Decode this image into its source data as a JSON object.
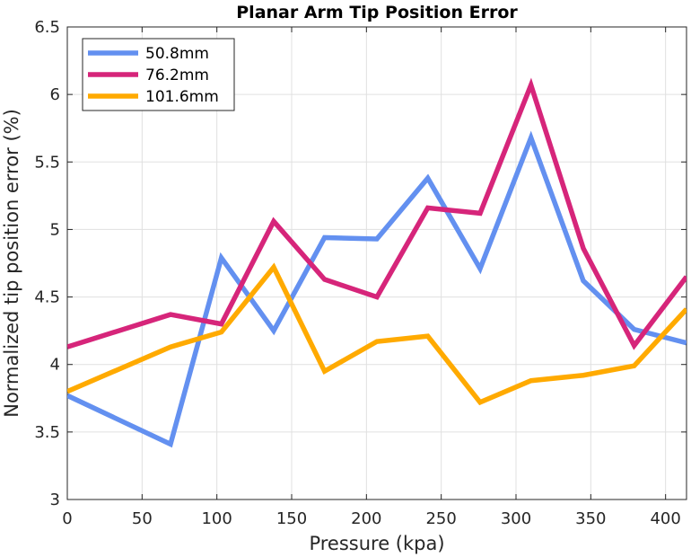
{
  "chart_data": {
    "type": "line",
    "title": "Planar Arm Tip Position Error",
    "xlabel": "Pressure (kpa)",
    "ylabel": "Normalized tip position error (%)",
    "xlim": [
      0,
      414
    ],
    "ylim": [
      3,
      6.5
    ],
    "xticks": [
      0,
      50,
      100,
      150,
      200,
      250,
      300,
      350,
      400
    ],
    "yticks": [
      3,
      3.5,
      4,
      4.5,
      5,
      5.5,
      6,
      6.5
    ],
    "xtick_labels": [
      "0",
      "50",
      "100",
      "150",
      "200",
      "250",
      "300",
      "350",
      "400"
    ],
    "ytick_labels": [
      "3",
      "3.5",
      "4",
      "4.5",
      "5",
      "5.5",
      "6",
      "6.5"
    ],
    "grid": true,
    "legend_position": "top-left",
    "x": [
      0,
      69,
      103,
      138,
      172,
      207,
      241,
      276,
      310,
      345,
      379,
      414
    ],
    "series": [
      {
        "name": "50.8mm",
        "color": "#6390f0",
        "values": [
          3.77,
          3.41,
          4.79,
          4.25,
          4.94,
          4.93,
          5.38,
          4.71,
          5.68,
          4.62,
          4.26,
          4.16
        ]
      },
      {
        "name": "76.2mm",
        "color": "#d6257a",
        "values": [
          4.13,
          4.37,
          4.3,
          5.06,
          4.63,
          4.5,
          5.16,
          5.12,
          6.07,
          4.86,
          4.14,
          4.65
        ]
      },
      {
        "name": "101.6mm",
        "color": "#ffaa00",
        "values": [
          3.8,
          4.13,
          4.24,
          4.72,
          3.95,
          4.17,
          4.21,
          3.72,
          3.88,
          3.92,
          3.99,
          4.41
        ]
      }
    ]
  }
}
